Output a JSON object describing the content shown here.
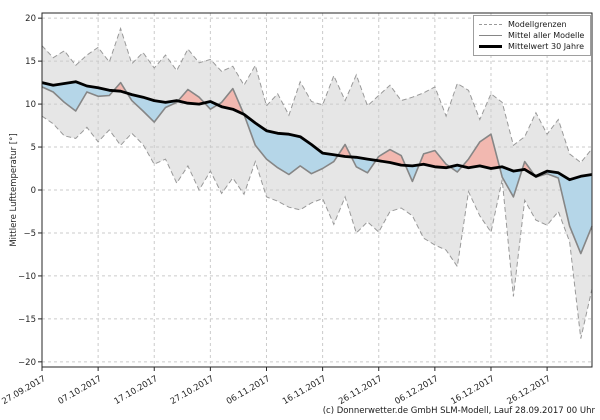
{
  "chart_data": {
    "type": "line",
    "title": "",
    "ylabel": "Mittlere Lufttemperatur [°]",
    "ylim": [
      -20,
      20
    ],
    "y_ticks": [
      -20,
      -15,
      -10,
      -5,
      0,
      5,
      10,
      15,
      20
    ],
    "y_tick_labels": [
      "−20",
      "−15",
      "−10",
      "−5",
      "0",
      "5",
      "10",
      "15",
      "20"
    ],
    "x_tick_days": [
      0,
      10,
      20,
      30,
      40,
      50,
      60,
      70,
      80,
      90
    ],
    "x_tick_labels": [
      "27.09.2017",
      "07.10.2017",
      "17.10.2017",
      "27.10.2017",
      "06.11.2017",
      "16.11.2017",
      "26.11.2017",
      "06.12.2017",
      "16.12.2017",
      "26.12.2017"
    ],
    "x_range_days": [
      0,
      98
    ],
    "sample_step_days": 2,
    "grid": true,
    "legend_position": "top-right",
    "series": [
      {
        "name": "Modellgrenzen (obere Grenze)",
        "style": "dashed-gray",
        "values": [
          16.8,
          15.4,
          16.2,
          14.5,
          15.7,
          16.6,
          14.9,
          18.8,
          14.7,
          16.0,
          14.2,
          15.7,
          13.9,
          16.4,
          14.8,
          15.2,
          13.8,
          14.4,
          12.2,
          14.5,
          9.8,
          11.2,
          8.7,
          12.6,
          10.3,
          9.9,
          13.3,
          10.4,
          13.4,
          9.8,
          11.0,
          12.2,
          10.4,
          10.8,
          11.3,
          12.0,
          8.6,
          12.4,
          11.6,
          8.2,
          11.2,
          10.2,
          5.2,
          6.2,
          9.0,
          6.5,
          8.2,
          4.2,
          3.2,
          4.8
        ]
      },
      {
        "name": "Modellgrenzen (untere Grenze)",
        "style": "dashed-gray",
        "values": [
          8.6,
          7.7,
          6.3,
          6.0,
          7.3,
          5.6,
          7.0,
          5.2,
          6.6,
          5.3,
          3.0,
          3.6,
          0.8,
          2.8,
          0.0,
          2.2,
          -0.4,
          1.4,
          -0.5,
          3.3,
          -0.8,
          -1.3,
          -2.0,
          -2.3,
          -1.5,
          -1.0,
          -4.0,
          -0.8,
          -5.0,
          -3.7,
          -4.9,
          -2.5,
          -2.1,
          -3.0,
          -5.6,
          -6.4,
          -7.0,
          -8.9,
          -0.2,
          -3.0,
          -4.9,
          1.2,
          -12.4,
          -1.2,
          -3.5,
          -4.1,
          -2.5,
          -6.0,
          -17.3,
          -11.5
        ]
      },
      {
        "name": "Mittel aller Modelle",
        "style": "solid-gray",
        "values": [
          12.0,
          11.4,
          10.2,
          9.2,
          11.4,
          10.9,
          11.0,
          12.5,
          10.4,
          9.2,
          7.9,
          9.6,
          10.2,
          11.7,
          10.8,
          9.4,
          10.2,
          11.8,
          8.8,
          5.2,
          3.6,
          2.6,
          1.8,
          2.8,
          1.9,
          2.5,
          3.3,
          5.3,
          2.7,
          2.0,
          3.9,
          4.7,
          4.0,
          1.0,
          4.2,
          4.6,
          3.0,
          2.1,
          3.6,
          5.6,
          6.5,
          1.5,
          -0.8,
          3.3,
          1.5,
          1.9,
          1.4,
          -4.2,
          -7.4,
          -4.2
        ]
      },
      {
        "name": "Mittelwert 30 Jahre",
        "style": "solid-black-thick",
        "values": [
          12.5,
          12.2,
          12.4,
          12.6,
          12.1,
          11.9,
          11.6,
          11.5,
          11.1,
          10.8,
          10.4,
          10.2,
          10.4,
          10.1,
          10.0,
          10.3,
          9.7,
          9.4,
          8.8,
          7.8,
          6.9,
          6.6,
          6.5,
          6.2,
          5.3,
          4.3,
          4.1,
          3.9,
          3.8,
          3.6,
          3.4,
          3.2,
          2.9,
          2.8,
          3.0,
          2.7,
          2.6,
          2.9,
          2.6,
          2.8,
          2.5,
          2.7,
          2.2,
          2.4,
          1.6,
          2.2,
          2.0,
          1.2,
          1.6,
          1.8
        ]
      }
    ],
    "colors": {
      "band": "#e6e6e6",
      "band_edge": "#999999",
      "model_mean_line": "#868686",
      "climate_mean_line": "#000000",
      "fill_above_mean": "#f2b8b0",
      "fill_below_mean": "#b5d6e8",
      "grid": "#cbcbcb",
      "frame": "#262626"
    },
    "legend": {
      "entries": [
        "Modellgrenzen",
        "Mittel aller Modelle",
        "Mittelwert 30 Jahre"
      ]
    },
    "caption": "(c) Donnerwetter.de GmbH SLM-Modell, Lauf 28.09.2017 00 Uhr"
  }
}
